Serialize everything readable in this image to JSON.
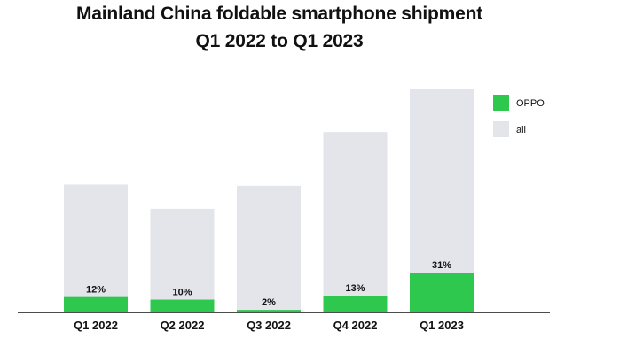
{
  "chart_data": {
    "type": "bar",
    "title": "Mainland China foldable smartphone shipment",
    "subtitle": "Q1 2022 to Q1 2023",
    "xlabel": "",
    "ylabel": "",
    "categories": [
      "Q1 2022",
      "Q2 2022",
      "Q3 2022",
      "Q4 2022",
      "Q1 2023"
    ],
    "series": [
      {
        "name": "OPPO",
        "color": "#2ec84e",
        "values": [
          0.12,
          0.1,
          0.02,
          0.13,
          0.31
        ]
      },
      {
        "name": "all",
        "color": "#e3e5ea",
        "values": [
          1.0,
          0.81,
          0.99,
          1.41,
          1.75
        ]
      }
    ],
    "data_labels": [
      "12%",
      "10%",
      "2%",
      "13%",
      "31%"
    ],
    "ylim": [
      0,
      1.75
    ],
    "grid": false,
    "legend": "top-right",
    "axis_color": "#111111"
  }
}
